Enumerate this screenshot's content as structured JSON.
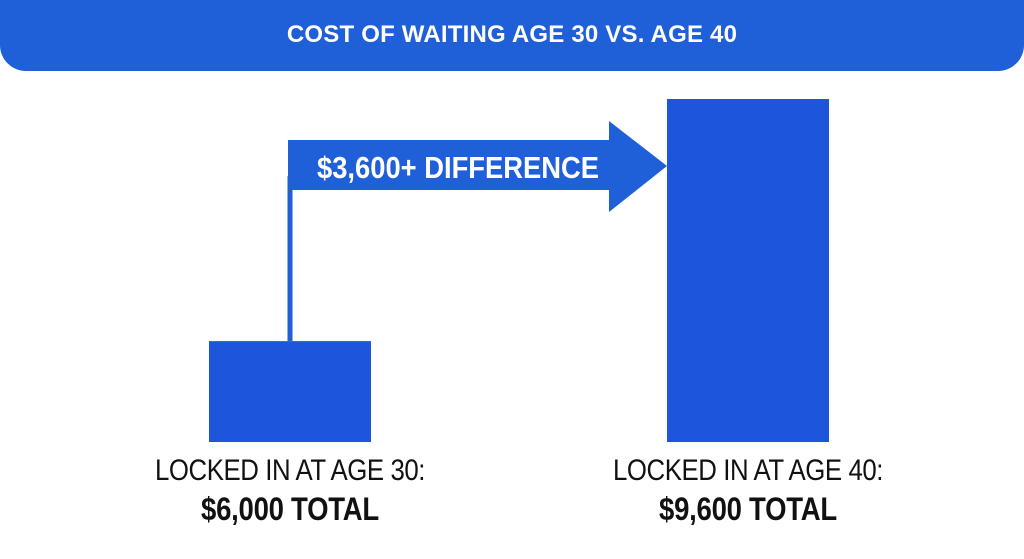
{
  "header": {
    "title": "COST OF WAITING AGE 30 VS. AGE 40"
  },
  "colors": {
    "primary": "#1f5fd8",
    "bar": "#1e56db",
    "text": "#111111"
  },
  "chart_data": {
    "type": "bar",
    "categories": [
      "LOCKED IN AT AGE 30:",
      "LOCKED IN AT AGE 40:"
    ],
    "values": [
      6000,
      9600
    ],
    "value_labels": [
      "$6,000 TOTAL",
      "$9,600 TOTAL"
    ],
    "annotation": {
      "text": "$3,600+ DIFFERENCE",
      "value": 3600,
      "from": "LOCKED IN AT AGE 30:",
      "to": "LOCKED IN AT AGE 40:"
    },
    "title": "COST OF WAITING AGE 30 VS. AGE 40",
    "xlabel": "",
    "ylabel": "",
    "ylim": [
      4500,
      9600
    ],
    "grid": false
  }
}
